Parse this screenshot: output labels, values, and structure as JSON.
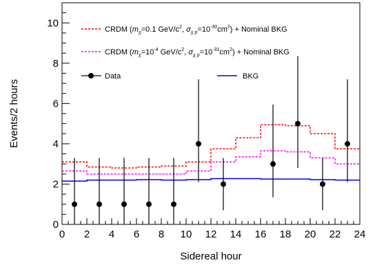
{
  "chart_data": {
    "type": "line",
    "xlabel": "Sidereal hour",
    "ylabel": "Events/2 hours",
    "xlim": [
      0,
      24
    ],
    "ylim": [
      0,
      11
    ],
    "x_ticks": [
      "0",
      "2",
      "4",
      "6",
      "8",
      "10",
      "12",
      "14",
      "16",
      "18",
      "20",
      "22",
      "24"
    ],
    "y_ticks": [
      "0",
      "2",
      "4",
      "6",
      "8",
      "10"
    ],
    "bin_edges": [
      0,
      2,
      4,
      6,
      8,
      10,
      12,
      14,
      16,
      18,
      20,
      22,
      24
    ],
    "series": [
      {
        "style": "dashed",
        "color": "#ff0000",
        "values": [
          3.1,
          2.85,
          2.8,
          2.85,
          2.9,
          3.1,
          3.75,
          4.3,
          4.95,
          4.9,
          4.5,
          3.75
        ]
      },
      {
        "style": "dashed",
        "color": "#ff00ff",
        "values": [
          2.65,
          2.5,
          2.5,
          2.5,
          2.5,
          2.65,
          3.1,
          3.35,
          3.65,
          3.6,
          3.3,
          3.0
        ]
      },
      {
        "name": "BKG",
        "style": "solid",
        "color": "#0000dd",
        "values": [
          2.15,
          2.2,
          2.2,
          2.22,
          2.2,
          2.22,
          2.27,
          2.27,
          2.25,
          2.25,
          2.22,
          2.2
        ]
      },
      {
        "name": "Data",
        "style": "points",
        "color": "#000000",
        "x": [
          1,
          3,
          5,
          7,
          9,
          11,
          13,
          17,
          19,
          21,
          23
        ],
        "y": [
          1,
          1,
          1,
          1,
          1,
          4,
          2,
          3,
          5,
          2,
          4
        ],
        "err_low": [
          1,
          1,
          1,
          1,
          1,
          1.9,
          1.3,
          1.65,
          2.2,
          1.3,
          1.9
        ],
        "err_high": [
          2.3,
          2.3,
          2.3,
          2.3,
          2.3,
          3.2,
          1.3,
          2.95,
          3.35,
          1.3,
          3.2
        ]
      }
    ],
    "legend": {
      "entry1": {
        "prefix": "CRDM (",
        "m": "m",
        "m_sub": "χ",
        "m_val": "=0.1 GeV/c",
        "sq": "2",
        "sep": ", ",
        "sig": "σ",
        "sig_sub": "χ p",
        "eq": "=10",
        "exp": "-30",
        "unit": "cm",
        "unit_sq": "2",
        "suffix": ") + Nominal BKG"
      },
      "entry2": {
        "prefix": "CRDM (",
        "m": "m",
        "m_sub": "χ",
        "eq1": "=10",
        "exp1": "-4",
        "m_val": " GeV/c",
        "sq": "2",
        "sep": ", ",
        "sig": "σ",
        "sig_sub": "χ p",
        "eq": "=10",
        "exp": "-31",
        "unit": "cm",
        "unit_sq": "2",
        "suffix": ") + Nominal BKG"
      },
      "data_label": "Data",
      "bkg_label": "BKG"
    }
  }
}
